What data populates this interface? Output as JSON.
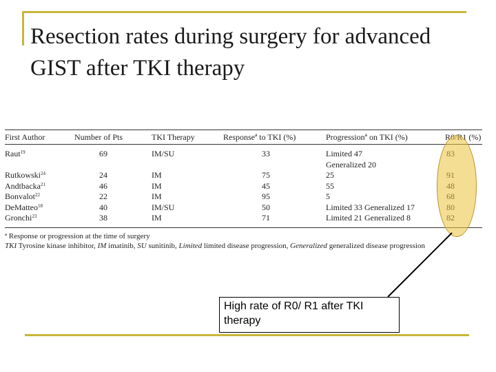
{
  "title": "Resection rates during surgery for advanced GIST after TKI therapy",
  "table": {
    "headers": [
      "First Author",
      "Number of Pts",
      "TKI Therapy",
      "Responseª to TKI (%)",
      "Progressionª on TKI (%)",
      "R0/R1 (%)"
    ],
    "rows": [
      {
        "author": "Raut",
        "ref": "19",
        "pts": "69",
        "tki": "IM/SU",
        "response": "33",
        "progression": "Limited 47",
        "r0r1": "83"
      },
      {
        "author": "",
        "ref": "",
        "pts": "",
        "tki": "",
        "response": "",
        "progression": "Generalized 20",
        "r0r1": ""
      },
      {
        "author": "Rutkowski",
        "ref": "24",
        "pts": "24",
        "tki": "IM",
        "response": "75",
        "progression": "25",
        "r0r1": "91"
      },
      {
        "author": "Andtbacka",
        "ref": "21",
        "pts": "46",
        "tki": "IM",
        "response": "45",
        "progression": "55",
        "r0r1": "48"
      },
      {
        "author": "Bonvalot",
        "ref": "22",
        "pts": "22",
        "tki": "IM",
        "response": "95",
        "progression": "5",
        "r0r1": "68"
      },
      {
        "author": "DeMatteo",
        "ref": "18",
        "pts": "40",
        "tki": "IM/SU",
        "response": "50",
        "progression": "Limited 33 Generalized 17",
        "r0r1": "80"
      },
      {
        "author": "Gronchi",
        "ref": "23",
        "pts": "38",
        "tki": "IM",
        "response": "71",
        "progression": "Limited 21 Generalized 8",
        "r0r1": "82"
      }
    ],
    "footnotes": {
      "note1": "ª Response or progression at the time of surgery",
      "tki_abbr": "TKI",
      "tki_def": " Tyrosine kinase inhibitor, ",
      "im_abbr": "IM",
      "im_def": " imatinib, ",
      "su_abbr": "SU",
      "su_def": " sunitinib, ",
      "limited_abbr": "Limited",
      "limited_def": " limited disease progression, ",
      "generalized_abbr": "Generalized",
      "generalized_def": " generalized disease progression"
    }
  },
  "callout": "High rate of R0/ R1 after TKI therapy",
  "colors": {
    "accent_line": "#c9b53a",
    "highlight": "#ebc33c"
  }
}
